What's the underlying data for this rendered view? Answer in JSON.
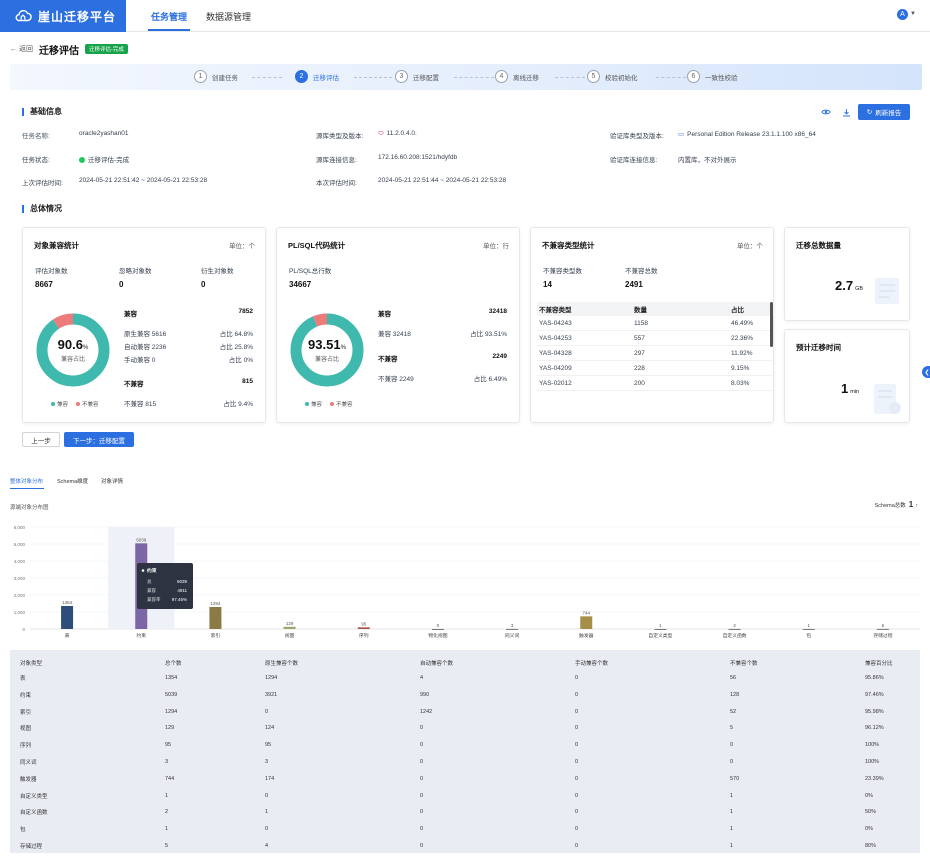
{
  "header": {
    "brand": "崖山迁移平台",
    "nav": [
      "任务管理",
      "数据源管理"
    ],
    "user_icon": "A"
  },
  "page": {
    "back": "返回",
    "title": "迁移评估",
    "badge": "迁移评估-完成"
  },
  "steps": [
    {
      "num": "1",
      "label": "创建任务"
    },
    {
      "num": "2",
      "label": "迁移评估"
    },
    {
      "num": "3",
      "label": "迁移配置"
    },
    {
      "num": "4",
      "label": "离线迁移"
    },
    {
      "num": "5",
      "label": "校验初始化"
    },
    {
      "num": "6",
      "label": "一致性校验"
    }
  ],
  "basic": {
    "title": "基础信息",
    "refresh": "刷新报告",
    "task_name_label": "任务名称:",
    "task_name": "oracle2yashan01",
    "task_status_label": "任务状态:",
    "task_status": "迁移评估-完成",
    "last_eval_label": "上次评估时间:",
    "last_eval": "2024-05-21 22:51:42 ~ 2024-05-21 22:53:28",
    "src_type_label": "源库类型及版本:",
    "src_type": "11.2.0.4.0.",
    "src_conn_label": "源库连接信息:",
    "src_conn": "172.16.60.208:1521/hdyfdb",
    "this_eval_label": "本次评估时间:",
    "this_eval": "2024-05-21 22:51:44 ~ 2024-05-21 22:53:28",
    "val_type_label": "验证库类型及版本:",
    "val_type": "Personal Edition Release 23.1.1.100 x86_64",
    "val_conn_label": "验证库连接信息:",
    "val_conn": "内置库，不对外展示"
  },
  "overview": {
    "title": "总体情况"
  },
  "obj_card": {
    "title": "对象兼容统计",
    "unit": "单位：个",
    "eval_label": "评估对象数",
    "eval": "8667",
    "ignore_label": "忽略对象数",
    "ignore": "0",
    "derived_label": "衍生对象数",
    "derived": "0",
    "pct_int": "90.",
    "pct_dec": "6",
    "pct_sign": "%",
    "pct_sub": "兼容占比",
    "compat_label": "兼容",
    "compat": "7852",
    "native_label": "原生兼容 5616",
    "native_pct": "占比 64.8%",
    "auto_label": "自动兼容 2236",
    "auto_pct": "占比 25.8%",
    "manual_label": "手动兼容 0",
    "manual_pct": "占比 0%",
    "incompat_label": "不兼容",
    "incompat": "815",
    "incompat2_label": "不兼容 815",
    "incompat2_pct": "占比 9.4%",
    "legend_a": "兼容",
    "legend_b": "不兼容"
  },
  "plsql_card": {
    "title": "PL/SQL代码统计",
    "unit": "单位：行",
    "total_label": "PL/SQL总行数",
    "total": "34667",
    "pct_int": "93.",
    "pct_dec": "51",
    "pct_sign": "%",
    "pct_sub": "兼容占比",
    "compat_label": "兼容",
    "compat": "32418",
    "compat2_label": "兼容 32418",
    "compat2_pct": "占比 93.51%",
    "incompat_label": "不兼容",
    "incompat": "2249",
    "incompat2_label": "不兼容 2249",
    "incompat2_pct": "占比 6.49%",
    "legend_a": "兼容",
    "legend_b": "不兼容"
  },
  "incompat_card": {
    "title": "不兼容类型统计",
    "unit": "单位：个",
    "types_label": "不兼容类型数",
    "types": "14",
    "total_label": "不兼容总数",
    "total": "2491",
    "headers": [
      "不兼容类型",
      "数量",
      "占比"
    ],
    "rows": [
      [
        "YAS-04243",
        "1158",
        "46.49%"
      ],
      [
        "YAS-04253",
        "557",
        "22.36%"
      ],
      [
        "YAS-04328",
        "297",
        "11.92%"
      ],
      [
        "YAS-04209",
        "228",
        "9.15%"
      ],
      [
        "YAS-02012",
        "200",
        "8.03%"
      ]
    ]
  },
  "volume_card": {
    "title": "迁移总数据量",
    "value": "2.7",
    "unit": "GB"
  },
  "time_card": {
    "title": "预计迁移时间",
    "value": "1",
    "unit": "min"
  },
  "actions": {
    "prev": "上一步",
    "next": "下一步：迁移配置"
  },
  "lower": {
    "tabs": [
      "整体对象分布",
      "Schema维度",
      "对象详情"
    ],
    "subtitle": "源端对象分布图",
    "schema_label": "Schema总数",
    "schema_count": "1"
  },
  "chart_data": {
    "type": "bar",
    "categories": [
      "表",
      "约束",
      "索引",
      "视图",
      "序列",
      "物化视图",
      "同义词",
      "触发器",
      "自定义类型",
      "自定义函数",
      "包",
      "存储过程"
    ],
    "values": [
      1354,
      5039,
      1294,
      129,
      95,
      0,
      3,
      744,
      1,
      2,
      1,
      5
    ],
    "ylim": [
      0,
      6000
    ],
    "yticks": [
      "6,000",
      "5,000",
      "4,000",
      "3,000",
      "2,000",
      "1,000",
      "0"
    ],
    "colors": [
      "#2e4d7b",
      "#7b66a6",
      "#8b7a44",
      "#9aa86e",
      "#a5503e",
      "#555555",
      "#555555",
      "#a58f48",
      "#555555",
      "#555555",
      "#555555",
      "#555555"
    ],
    "tooltip": {
      "title": "约束",
      "rows": [
        [
          "总",
          "5039"
        ],
        [
          "兼容",
          "4911"
        ],
        [
          "兼容率",
          "97.46%"
        ]
      ]
    }
  },
  "table": {
    "headers": [
      "对象类型",
      "总个数",
      "原生兼容个数",
      "自动兼容个数",
      "手动兼容个数",
      "不兼容个数",
      "兼容百分比"
    ],
    "rows": [
      [
        "表",
        "1354",
        "1294",
        "4",
        "0",
        "56",
        "95.86%"
      ],
      [
        "约束",
        "5039",
        "3921",
        "990",
        "0",
        "128",
        "97.46%"
      ],
      [
        "索引",
        "1294",
        "0",
        "1242",
        "0",
        "52",
        "95.98%"
      ],
      [
        "视图",
        "129",
        "124",
        "0",
        "0",
        "5",
        "96.12%"
      ],
      [
        "序列",
        "95",
        "95",
        "0",
        "0",
        "0",
        "100%"
      ],
      [
        "同义词",
        "3",
        "3",
        "0",
        "0",
        "0",
        "100%"
      ],
      [
        "触发器",
        "744",
        "174",
        "0",
        "0",
        "570",
        "23.39%"
      ],
      [
        "自定义类型",
        "1",
        "0",
        "0",
        "0",
        "1",
        "0%"
      ],
      [
        "自定义函数",
        "2",
        "1",
        "0",
        "0",
        "1",
        "50%"
      ],
      [
        "包",
        "1",
        "0",
        "0",
        "0",
        "1",
        "0%"
      ],
      [
        "存储过程",
        "5",
        "4",
        "0",
        "0",
        "1",
        "80%"
      ]
    ]
  }
}
